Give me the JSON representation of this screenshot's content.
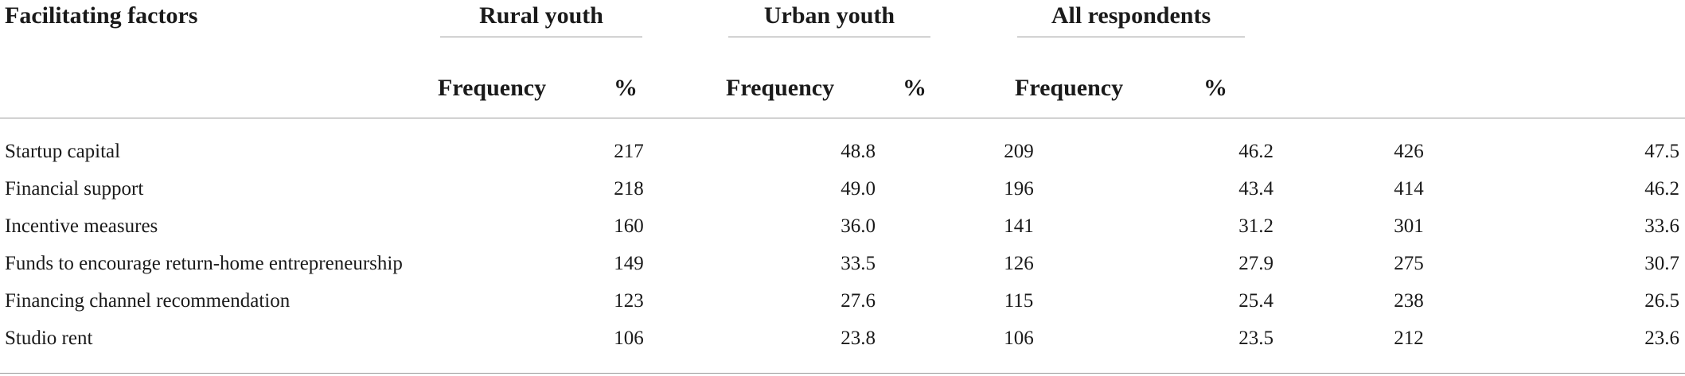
{
  "table": {
    "row_header_label": "Facilitating factors",
    "groups": [
      "Rural youth",
      "Urban youth",
      "All respondents"
    ],
    "subheaders": {
      "frequency": "Frequency",
      "percent": "%"
    },
    "rows": [
      {
        "factor": "Startup capital",
        "rural_freq": "217",
        "rural_pct": "48.8",
        "urban_freq": "209",
        "urban_pct": "46.2",
        "all_freq": "426",
        "all_pct": "47.5"
      },
      {
        "factor": "Financial support",
        "rural_freq": "218",
        "rural_pct": "49.0",
        "urban_freq": "196",
        "urban_pct": "43.4",
        "all_freq": "414",
        "all_pct": "46.2"
      },
      {
        "factor": "Incentive measures",
        "rural_freq": "160",
        "rural_pct": "36.0",
        "urban_freq": "141",
        "urban_pct": "31.2",
        "all_freq": "301",
        "all_pct": "33.6"
      },
      {
        "factor": "Funds to encourage return-home entrepreneurship",
        "rural_freq": "149",
        "rural_pct": "33.5",
        "urban_freq": "126",
        "urban_pct": "27.9",
        "all_freq": "275",
        "all_pct": "30.7"
      },
      {
        "factor": "Financing channel recommendation",
        "rural_freq": "123",
        "rural_pct": "27.6",
        "urban_freq": "115",
        "urban_pct": "25.4",
        "all_freq": "238",
        "all_pct": "26.5"
      },
      {
        "factor": "Studio rent",
        "rural_freq": "106",
        "rural_pct": "23.8",
        "urban_freq": "106",
        "urban_pct": "23.5",
        "all_freq": "212",
        "all_pct": "23.6"
      }
    ]
  }
}
